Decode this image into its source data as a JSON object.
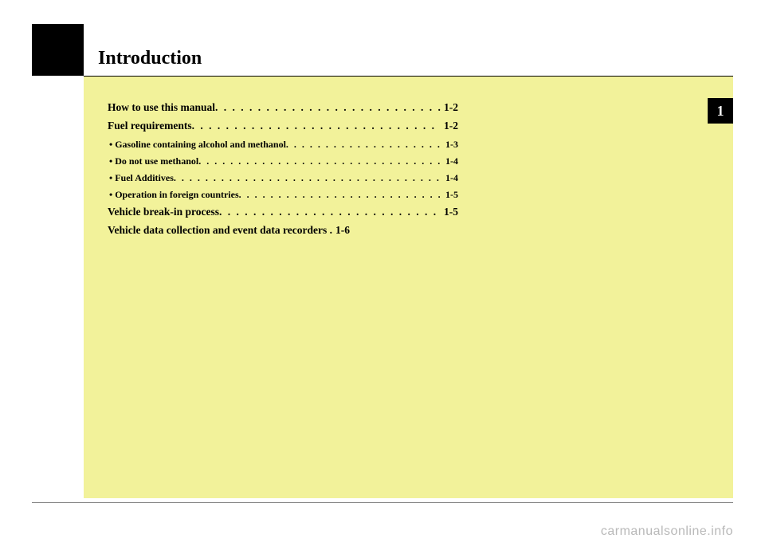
{
  "chapter": {
    "title": "Introduction",
    "number": "1"
  },
  "toc": [
    {
      "type": "main",
      "label": "How to use this manual",
      "page": "1-2"
    },
    {
      "type": "main",
      "label": "Fuel requirements",
      "page": "1-2"
    },
    {
      "type": "sub",
      "label": "• Gasoline containing alcohol and methanol",
      "page": "1-3"
    },
    {
      "type": "sub",
      "label": "• Do not use methanol",
      "page": "1-4"
    },
    {
      "type": "sub",
      "label": "• Fuel Additives",
      "page": "1-4"
    },
    {
      "type": "sub",
      "label": "• Operation in foreign countries",
      "page": "1-5"
    },
    {
      "type": "main",
      "label": "Vehicle break-in process",
      "page": "1-5"
    },
    {
      "type": "main",
      "label": "Vehicle data collection and event data recorders .",
      "page": "1-6",
      "nodots": true
    }
  ],
  "watermark": "carmanualsonline.info",
  "colors": {
    "yellow_panel": "#f2f29a",
    "black": "#000000",
    "white": "#ffffff",
    "watermark": "#b9b9b9",
    "footer_rule": "#888888"
  }
}
